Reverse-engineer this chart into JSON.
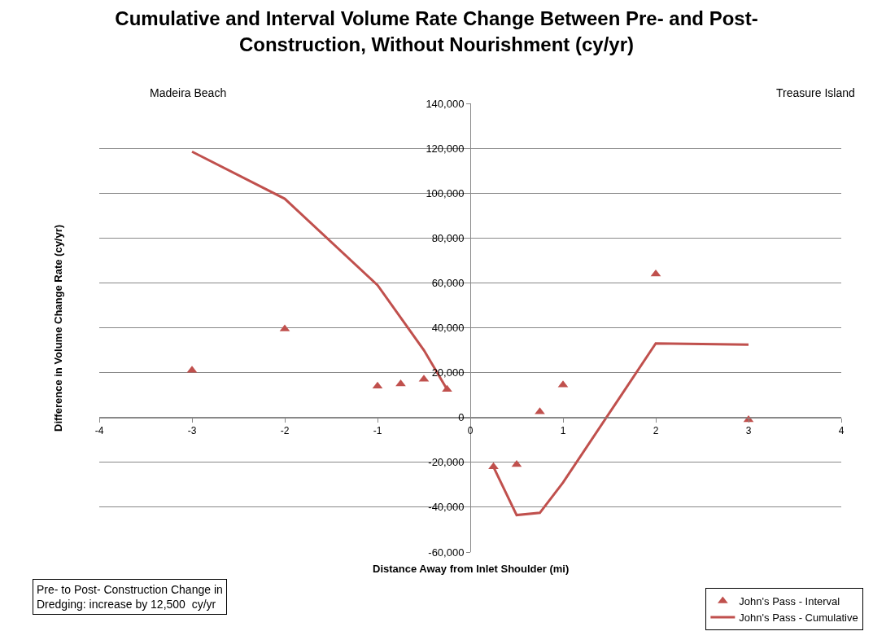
{
  "chart_data": {
    "type": "scatter",
    "title": "Cumulative and Interval Volume Rate Change Between Pre- and Post-Construction, Without Nourishment (cy/yr)",
    "xlabel": "Distance Away from Inlet Shoulder (mi)",
    "ylabel": "Difference in Volume Change Rate (cy/yr)",
    "xlim": [
      -4,
      4
    ],
    "xticks": [
      -4,
      -3,
      -2,
      -1,
      0,
      1,
      2,
      3,
      4
    ],
    "ylim": [
      -60000,
      140000
    ],
    "yticks": [
      {
        "value": -60000,
        "label": "-60,000"
      },
      {
        "value": -40000,
        "label": "-40,000"
      },
      {
        "value": -20000,
        "label": "-20,000"
      },
      {
        "value": 0,
        "label": "0"
      },
      {
        "value": 20000,
        "label": "20,000"
      },
      {
        "value": 40000,
        "label": "40,000"
      },
      {
        "value": 60000,
        "label": "60,000"
      },
      {
        "value": 80000,
        "label": "80,000"
      },
      {
        "value": 100000,
        "label": "100,000"
      },
      {
        "value": 120000,
        "label": "120,000"
      },
      {
        "value": 140000,
        "label": "140,000"
      }
    ],
    "grid": "y",
    "legend": "bottom right",
    "series": [
      {
        "name": "John's Pass - Interval",
        "marker": "triangle",
        "color": "#c0504d",
        "x": [
          -3,
          -2,
          -1,
          -0.75,
          -0.5,
          -0.25,
          0.25,
          0.5,
          0.75,
          1,
          2,
          3
        ],
        "values": [
          21000,
          39500,
          14000,
          15000,
          17000,
          12500,
          -22000,
          -21000,
          2500,
          14500,
          64000,
          -1000
        ]
      },
      {
        "name": "John's Pass - Cumulative",
        "type": "line",
        "marker": "none",
        "line_style": "solid",
        "color": "#c0504d",
        "x": [
          -3,
          -2,
          -1,
          -0.5,
          -0.25,
          null,
          0.25,
          0.5,
          0.75,
          1,
          2,
          3
        ],
        "values": [
          118500,
          97500,
          59000,
          30000,
          12500,
          null,
          -22000,
          -43500,
          -42500,
          -29000,
          33000,
          32500
        ]
      }
    ],
    "annotations": [
      "Madeira Beach",
      "Treasure Island",
      "Pre- to Post- Construction Change in Dredging: increase by 12,500  cy/yr"
    ]
  }
}
